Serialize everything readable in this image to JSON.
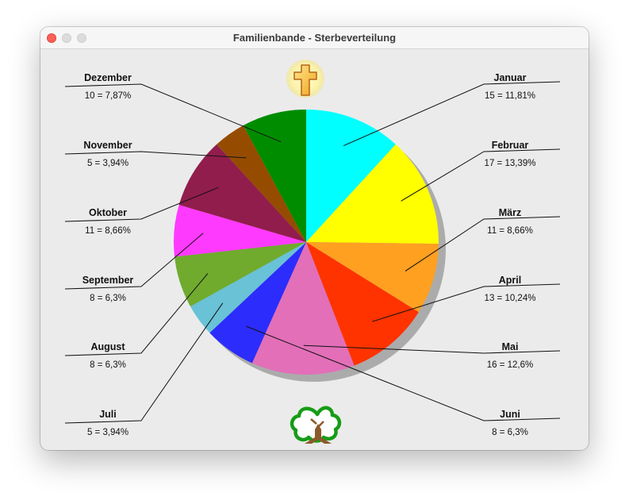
{
  "window": {
    "title": "Familienbande - Sterbeverteilung"
  },
  "icons": {
    "top": "cross-icon",
    "bottom": "tree-icon"
  },
  "chart_data": {
    "type": "pie",
    "title": "",
    "categories": [
      "Januar",
      "Februar",
      "März",
      "April",
      "Mai",
      "Juni",
      "Juli",
      "August",
      "September",
      "Oktober",
      "November",
      "Dezember"
    ],
    "values": [
      15,
      17,
      11,
      13,
      16,
      8,
      5,
      8,
      8,
      11,
      5,
      10
    ],
    "labels": [
      "15 = 11,81%",
      "17 = 13,39%",
      "11 = 8,66%",
      "13 = 10,24%",
      "16 = 12,6%",
      "8 = 6,3%",
      "5 = 3,94%",
      "8 = 6,3%",
      "8 = 6,3%",
      "11 = 8,66%",
      "5 = 3,94%",
      "10 = 7,87%"
    ],
    "colors": [
      "#00ffff",
      "#ffff00",
      "#ffa021",
      "#ff3300",
      "#e26fb8",
      "#2c2cfc",
      "#69c2d6",
      "#70ab2e",
      "#ff3aff",
      "#911d4c",
      "#964c00",
      "#008c00"
    ],
    "legend": "around"
  }
}
